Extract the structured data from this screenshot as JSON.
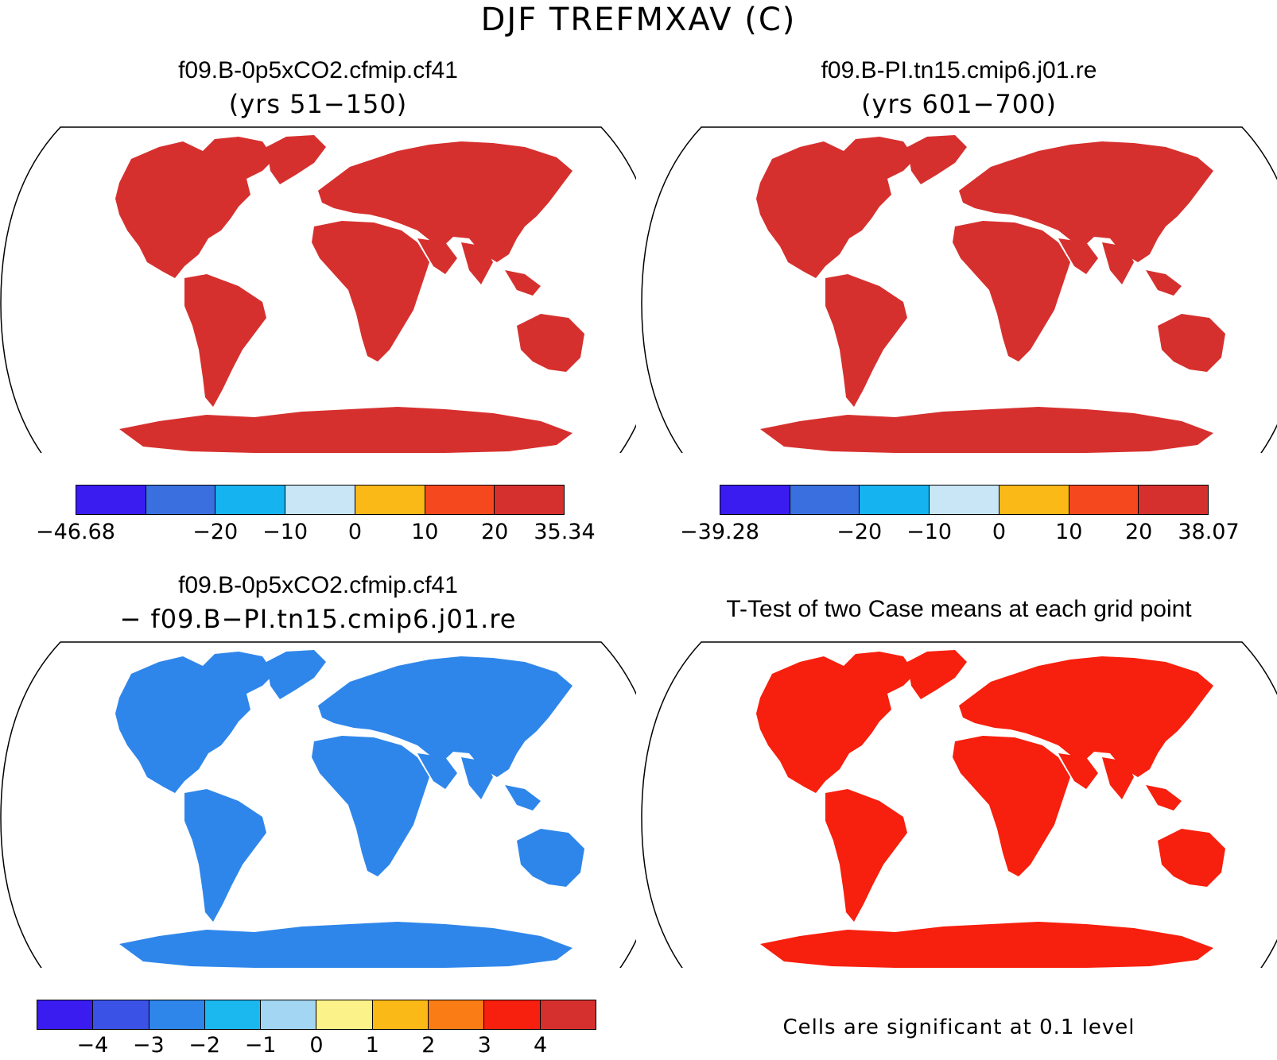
{
  "title": "DJF TREFMXAV (C)",
  "panels": {
    "top_left": {
      "title": "f09.B-0p5xCO2.cfmip.cf41",
      "subtitle": "(yrs 51−150)"
    },
    "top_right": {
      "title": "f09.B-PI.tn15.cmip6.j01.re",
      "subtitle": "(yrs 601−700)"
    },
    "bottom_left": {
      "title": "f09.B-0p5xCO2.cfmip.cf41",
      "subtitle": "− f09.B−PI.tn15.cmip6.j01.re"
    },
    "bottom_right": {
      "title": "T-Test of two Case means at each grid point",
      "note": "Cells are significant at 0.1 level"
    }
  },
  "colorbars": {
    "top_left": {
      "colors": [
        "#3a1cf0",
        "#3a6fe0",
        "#15b4f0",
        "#c8e6f5",
        "#fbb917",
        "#f5481e",
        "#d6302e"
      ],
      "labels": [
        "−46.68",
        "−20",
        "−10",
        "0",
        "10",
        "20",
        "35.34"
      ]
    },
    "top_right": {
      "colors": [
        "#3a1cf0",
        "#3a6fe0",
        "#15b4f0",
        "#c8e6f5",
        "#fbb917",
        "#f5481e",
        "#d6302e"
      ],
      "labels": [
        "−39.28",
        "−20",
        "−10",
        "0",
        "10",
        "20",
        "38.07"
      ]
    },
    "bottom_left": {
      "colors": [
        "#3a1cf0",
        "#3a52e6",
        "#2f86ea",
        "#1ab8ef",
        "#a3d6f2",
        "#fcf28a",
        "#fbb917",
        "#f97c14",
        "#f71f0d",
        "#d6302e"
      ],
      "labels": [
        "−4",
        "−3",
        "−2",
        "−1",
        "0",
        "1",
        "2",
        "3",
        "4"
      ]
    }
  },
  "map_colors": {
    "land_fill_diff": "#2f86ea",
    "land_fill_ttest": "#f71f0d",
    "ocean": "#ffffff"
  }
}
